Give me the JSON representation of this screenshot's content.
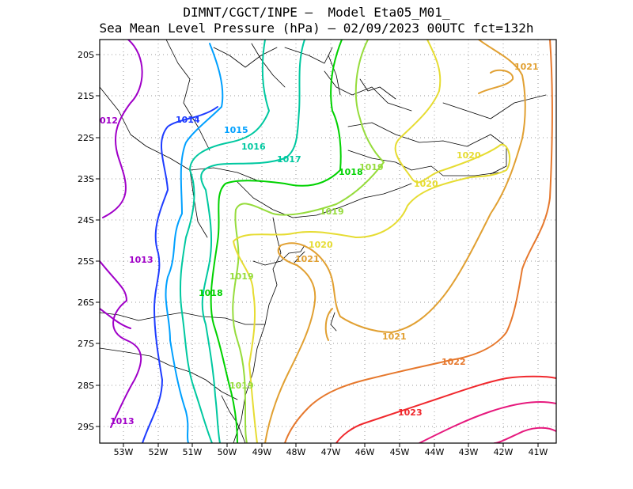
{
  "title_line1": "DIMNT/CGCT/INPE –  Model Eta05_M01_",
  "title_line2": "Sea Mean Level Pressure (hPa) – 02/09/2023 00UTC fct=132h",
  "lon_ticks": [
    "53W",
    "52W",
    "51W",
    "50W",
    "49W",
    "48W",
    "47W",
    "46W",
    "45W",
    "44W",
    "43W",
    "42W",
    "41W"
  ],
  "lat_ticks": [
    "20S",
    "21S",
    "22S",
    "23S",
    "24S",
    "25S",
    "26S",
    "27S",
    "28S",
    "29S"
  ],
  "contour_labels": [
    {
      "text": "012",
      "color": "#a000c8"
    },
    {
      "text": "1013",
      "color": "#a000c8"
    },
    {
      "text": "1013",
      "color": "#a000c8"
    },
    {
      "text": "1014",
      "color": "#1e3cff"
    },
    {
      "text": "1015",
      "color": "#00a0ff"
    },
    {
      "text": "1016",
      "color": "#00c8a0"
    },
    {
      "text": "1017",
      "color": "#00c8a0"
    },
    {
      "text": "1018",
      "color": "#00d200"
    },
    {
      "text": "1018",
      "color": "#00d200"
    },
    {
      "text": "1019",
      "color": "#96dc3c"
    },
    {
      "text": "1019",
      "color": "#96dc3c"
    },
    {
      "text": "1019",
      "color": "#96dc3c"
    },
    {
      "text": "1019",
      "color": "#96dc3c"
    },
    {
      "text": "1020",
      "color": "#e6dc32"
    },
    {
      "text": "1020",
      "color": "#e6dc32"
    },
    {
      "text": "1020",
      "color": "#e6dc32"
    },
    {
      "text": "1021",
      "color": "#e1a032"
    },
    {
      "text": "1021",
      "color": "#e1a032"
    },
    {
      "text": "1021",
      "color": "#e1a032"
    },
    {
      "text": "1022",
      "color": "#e6782d"
    },
    {
      "text": "1023",
      "color": "#f0282d"
    }
  ]
}
